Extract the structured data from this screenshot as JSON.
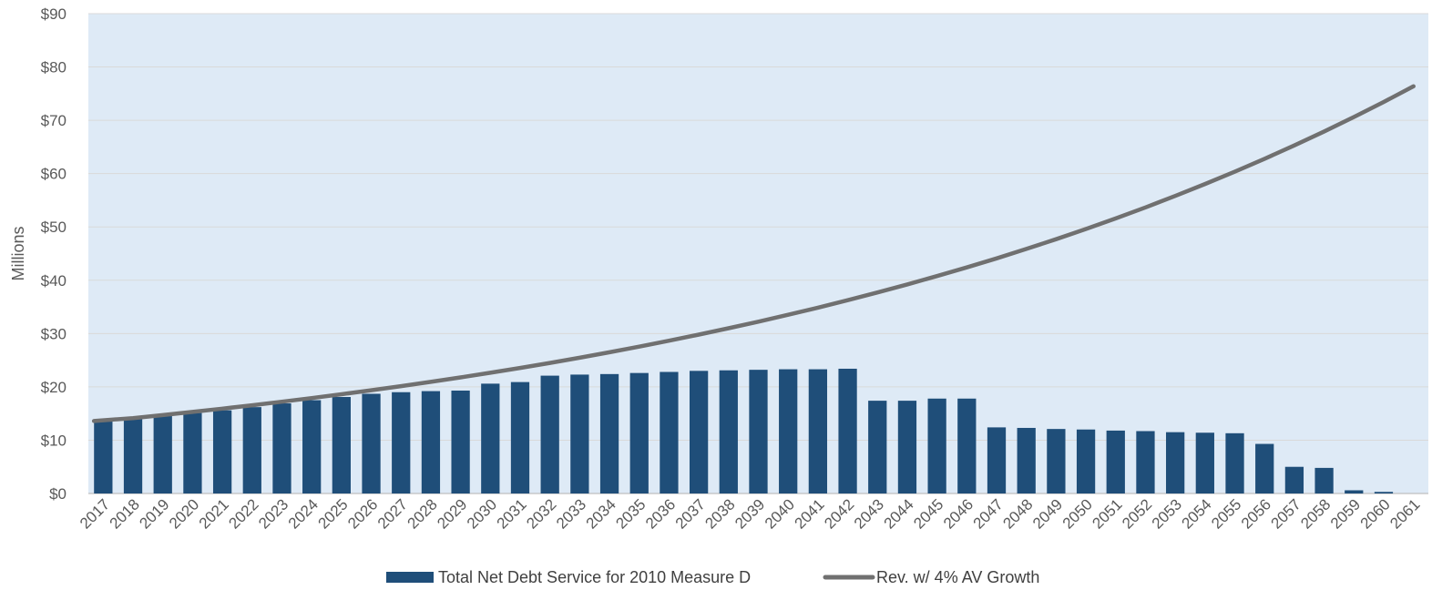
{
  "chart_data": {
    "type": "bar",
    "title": "",
    "xlabel": "",
    "ylabel": "Millions",
    "ylim": [
      0,
      90
    ],
    "y_ticks": [
      "$0",
      "$10",
      "$20",
      "$30",
      "$40",
      "$50",
      "$60",
      "$70",
      "$80",
      "$90"
    ],
    "grid": true,
    "legend_position": "bottom",
    "categories": [
      "2017",
      "2018",
      "2019",
      "2020",
      "2021",
      "2022",
      "2023",
      "2024",
      "2025",
      "2026",
      "2027",
      "2028",
      "2029",
      "2030",
      "2031",
      "2032",
      "2033",
      "2034",
      "2035",
      "2036",
      "2037",
      "2038",
      "2039",
      "2040",
      "2041",
      "2042",
      "2043",
      "2044",
      "2045",
      "2046",
      "2047",
      "2048",
      "2049",
      "2050",
      "2051",
      "2052",
      "2053",
      "2054",
      "2055",
      "2056",
      "2057",
      "2058",
      "2059",
      "2060",
      "2061"
    ],
    "series": [
      {
        "name": "Total Net Debt Service for 2010 Measure D",
        "type": "bar",
        "color": "#1F4E79",
        "values": [
          13.6,
          14.0,
          14.6,
          15.1,
          15.6,
          16.2,
          16.9,
          17.5,
          18.1,
          18.7,
          19.0,
          19.2,
          19.3,
          20.6,
          20.9,
          22.1,
          22.3,
          22.4,
          22.6,
          22.8,
          23.0,
          23.1,
          23.2,
          23.3,
          23.3,
          23.4,
          17.4,
          17.4,
          17.8,
          17.8,
          12.4,
          12.3,
          12.1,
          12.0,
          11.8,
          11.7,
          11.5,
          11.4,
          11.3,
          9.3,
          5.0,
          4.8,
          0.6,
          0.3,
          0.0
        ]
      },
      {
        "name": "Rev. w/ 4% AV Growth",
        "type": "line",
        "color": "#707070",
        "values": [
          13.6,
          14.14,
          14.71,
          15.3,
          15.91,
          16.55,
          17.21,
          17.9,
          18.61,
          19.36,
          20.13,
          20.93,
          21.77,
          22.64,
          23.55,
          24.49,
          25.47,
          26.49,
          27.55,
          28.65,
          29.8,
          30.99,
          32.23,
          33.52,
          34.86,
          36.25,
          37.7,
          39.21,
          40.78,
          42.41,
          44.1,
          45.87,
          47.7,
          49.61,
          51.6,
          53.66,
          55.81,
          58.04,
          60.36,
          62.77,
          65.29,
          67.9,
          70.61,
          73.44,
          76.37
        ]
      }
    ]
  },
  "colors": {
    "plot_background": "#DEEAF6",
    "gridline": "#D9D9D9"
  }
}
